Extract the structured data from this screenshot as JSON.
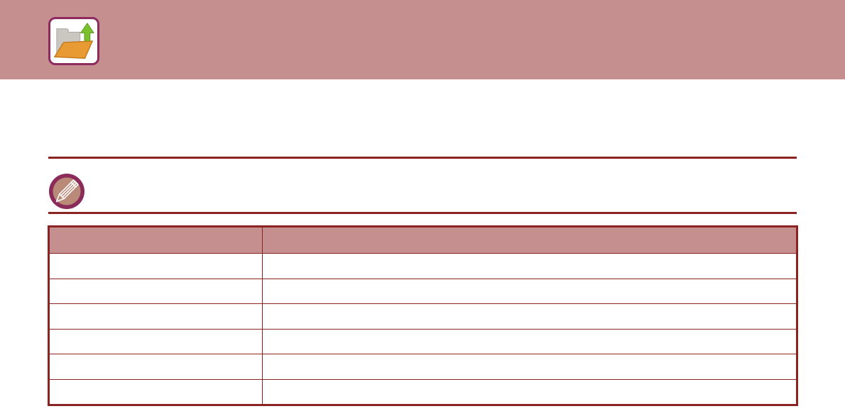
{
  "header": {
    "title": "",
    "icon": "folder-upload-icon"
  },
  "note": {
    "icon": "pencil-note-icon",
    "text": ""
  },
  "table": {
    "columns": [
      "",
      ""
    ],
    "rows": [
      [
        "",
        ""
      ],
      [
        "",
        ""
      ],
      [
        "",
        ""
      ],
      [
        "",
        ""
      ],
      [
        "",
        ""
      ],
      [
        "",
        ""
      ]
    ]
  },
  "colors": {
    "band_pink": "#c58f90",
    "table_header_pink": "#c58f90",
    "rule_red": "#8b2323",
    "table_border_red": "#8b2323",
    "icon_border_magenta": "#8e2a5e",
    "note_ring_magenta": "#8a2b5a",
    "note_inner_tan": "#ba8a79",
    "folder_orange": "#e89a33",
    "folder_gray": "#cac7c3",
    "arrow_green": "#7cc12d"
  }
}
